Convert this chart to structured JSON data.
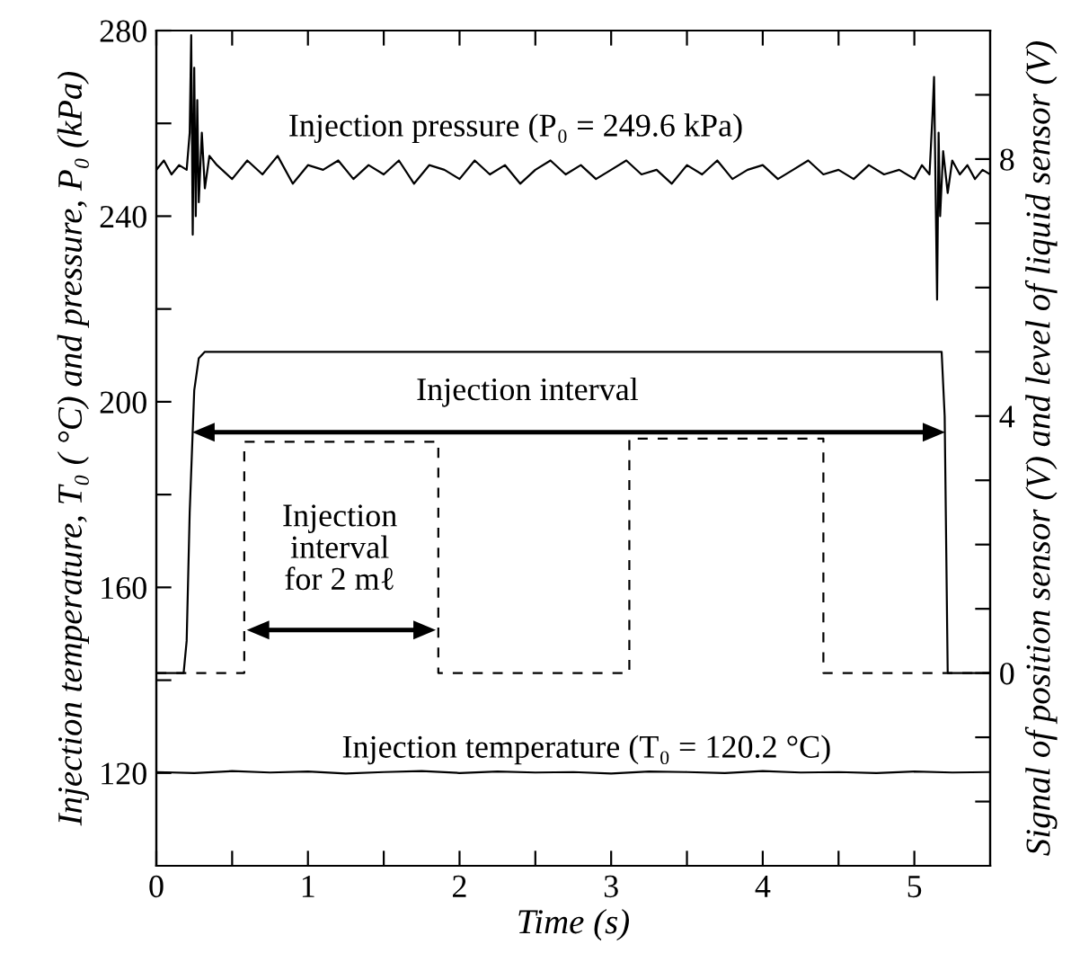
{
  "chart_data": {
    "type": "line",
    "xlabel": "Time (s)",
    "ylabel": "Injection temperature, T₀ ( °C) and pressure, P₀ (kPa)",
    "y2label": "Signal of position sensor (V) and level of liquid sensor (V)",
    "xlim": [
      0,
      5.5
    ],
    "xticks": [
      0,
      {
        "value": 0.5,
        "label": null
      },
      1,
      {
        "value": 1.5,
        "label": null
      },
      2,
      {
        "value": 2.5,
        "label": null
      },
      3,
      {
        "value": 3.5,
        "label": null
      },
      4,
      {
        "value": 4.5,
        "label": null
      },
      5
    ],
    "ylim": [
      100,
      280
    ],
    "yticks": [
      120,
      {
        "value": 140,
        "label": null
      },
      160,
      {
        "value": 180,
        "label": null
      },
      200,
      {
        "value": 220,
        "label": null
      },
      240,
      {
        "value": 260,
        "label": null
      },
      280
    ],
    "y2lim": [
      -3,
      10
    ],
    "y2ticks": [
      {
        "value": -2,
        "label": null
      },
      {
        "value": -1,
        "label": null
      },
      0,
      {
        "value": 1,
        "label": null
      },
      {
        "value": 2,
        "label": null
      },
      {
        "value": 3,
        "label": null
      },
      4,
      {
        "value": 5,
        "label": null
      },
      {
        "value": 6,
        "label": null
      },
      {
        "value": 7,
        "label": null
      },
      8,
      {
        "value": 9,
        "label": null
      }
    ],
    "grid": false,
    "series": [
      {
        "color": "#000000",
        "line_style": "solid",
        "x": [
          0,
          0.05,
          0.1,
          0.15,
          0.2,
          0.22,
          0.23,
          0.24,
          0.25,
          0.26,
          0.27,
          0.28,
          0.3,
          0.32,
          0.35,
          0.4,
          0.5,
          0.6,
          0.7,
          0.8,
          0.9,
          1.0,
          1.1,
          1.2,
          1.3,
          1.4,
          1.5,
          1.6,
          1.7,
          1.8,
          1.9,
          2.0,
          2.1,
          2.2,
          2.3,
          2.4,
          2.5,
          2.6,
          2.7,
          2.8,
          2.9,
          3.0,
          3.1,
          3.2,
          3.3,
          3.4,
          3.5,
          3.6,
          3.7,
          3.8,
          3.9,
          4.0,
          4.1,
          4.2,
          4.3,
          4.4,
          4.5,
          4.6,
          4.7,
          4.8,
          4.9,
          5.0,
          5.05,
          5.1,
          5.12,
          5.13,
          5.14,
          5.15,
          5.16,
          5.17,
          5.19,
          5.22,
          5.25,
          5.3,
          5.35,
          5.4,
          5.45,
          5.5
        ],
        "values": [
          250,
          252,
          249,
          251,
          250,
          258,
          279,
          236,
          272,
          240,
          265,
          243,
          258,
          246,
          253,
          251,
          248,
          252,
          249,
          253,
          247,
          251,
          250,
          252,
          248,
          251,
          249,
          252,
          247,
          251,
          250,
          248,
          252,
          249,
          251,
          247,
          250,
          252,
          249,
          251,
          248,
          250,
          252,
          249,
          250,
          247,
          251,
          249,
          252,
          248,
          250,
          251,
          248,
          250,
          252,
          249,
          250,
          248,
          251,
          249,
          250,
          248,
          251,
          249,
          262,
          270,
          246,
          222,
          258,
          240,
          254,
          245,
          252,
          249,
          251,
          248,
          250,
          249
        ]
      },
      {
        "color": "#000000",
        "line_style": "solid",
        "x": [
          0,
          0.25,
          0.5,
          0.75,
          1.0,
          1.25,
          1.5,
          1.75,
          2.0,
          2.25,
          2.5,
          2.75,
          3.0,
          3.25,
          3.5,
          3.75,
          4.0,
          4.25,
          4.5,
          4.75,
          5.0,
          5.25,
          5.5
        ],
        "values": [
          120.2,
          120.0,
          120.4,
          120.1,
          120.3,
          119.9,
          120.2,
          120.4,
          120.0,
          120.3,
          120.1,
          120.2,
          119.9,
          120.3,
          120.2,
          120.0,
          120.4,
          120.1,
          120.2,
          120.0,
          120.3,
          120.1,
          120.2
        ]
      },
      {
        "color": "#000000",
        "line_style": "solid",
        "axis": "y2",
        "x": [
          0,
          0.18,
          0.2,
          0.22,
          0.25,
          0.28,
          0.32,
          5.18,
          5.2,
          5.22,
          5.5
        ],
        "values": [
          0,
          0,
          0.5,
          2.5,
          4.4,
          4.9,
          5.0,
          5.0,
          4.0,
          0,
          0
        ]
      },
      {
        "color": "#000000",
        "line_style": "dashed",
        "axis": "y2",
        "x": [
          0,
          0.58,
          0.58,
          1.86,
          1.86,
          3.12,
          3.12,
          4.4,
          4.4,
          5.5
        ],
        "values": [
          0,
          0,
          3.6,
          3.6,
          0,
          0,
          3.65,
          3.65,
          0,
          0
        ]
      }
    ],
    "annotations": [
      "Injection pressure (P₀ = 249.6 kPa)",
      "Injection interval",
      "Injection\ninterval\nfor 2 mℓ",
      "Injection temperature (T₀ = 120.2 °C)"
    ]
  }
}
